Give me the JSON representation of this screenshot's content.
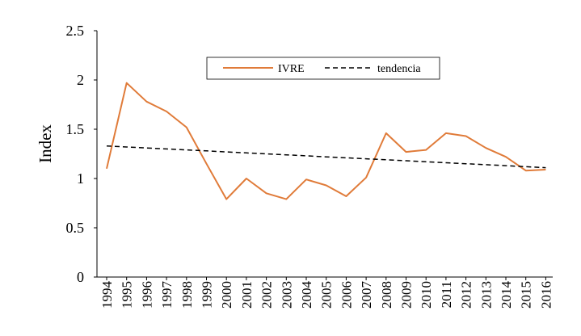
{
  "chart_data": {
    "type": "line",
    "ylabel": "Index",
    "xlabel": "",
    "title": "",
    "ylim": [
      0,
      2.5
    ],
    "yticks": [
      "0",
      "0.5",
      "1",
      "1.5",
      "2",
      "2.5"
    ],
    "categories": [
      "1994",
      "1995",
      "1996",
      "1997",
      "1998",
      "1999",
      "2000",
      "2001",
      "2002",
      "2003",
      "2004",
      "2005",
      "2006",
      "2007",
      "2008",
      "2009",
      "2010",
      "2011",
      "2012",
      "2013",
      "2014",
      "2015",
      "2016"
    ],
    "series": [
      {
        "name": "IVRE",
        "style": "solid",
        "color": "#E07B39",
        "values": [
          1.1,
          1.97,
          1.78,
          1.68,
          1.52,
          1.15,
          0.79,
          1.0,
          0.85,
          0.79,
          0.99,
          0.93,
          0.82,
          1.01,
          1.46,
          1.27,
          1.29,
          1.46,
          1.43,
          1.31,
          1.22,
          1.08,
          1.09
        ]
      },
      {
        "name": "tendencia",
        "style": "dashed",
        "color": "#000000",
        "values": [
          1.33,
          1.32,
          1.31,
          1.3,
          1.29,
          1.28,
          1.27,
          1.26,
          1.25,
          1.24,
          1.23,
          1.22,
          1.21,
          1.2,
          1.19,
          1.18,
          1.17,
          1.16,
          1.15,
          1.14,
          1.13,
          1.12,
          1.11
        ]
      }
    ],
    "grid": false,
    "legend_position": "top-center"
  }
}
